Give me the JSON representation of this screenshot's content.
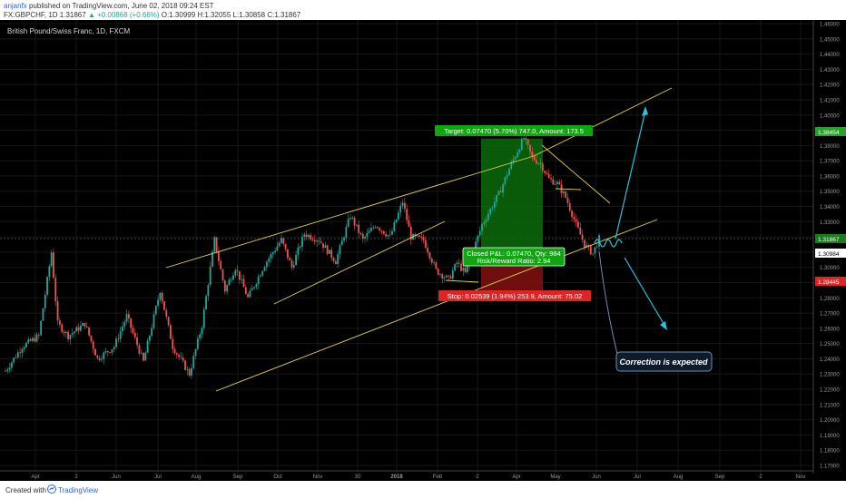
{
  "header": {
    "author": "anjanfx",
    "published": " published on TradingView.com, June 02, 2018 09:24 EST",
    "symbol_line_prefix": "FX:GBPCHF, 1D 1.31867 ",
    "change": "▲ +0.00868 (+0.66%)",
    "ohlc": " O:1.30999 H:1.32055 L:1.30858 C:1.31867"
  },
  "chart": {
    "instrument_label": "British Pound/Swiss Franc, 1D, FXCM",
    "x_ticks": [
      "Apr",
      "2",
      "Jun",
      "Jul",
      "Aug",
      "Sep",
      "Oct",
      "Nov",
      "30",
      "2018",
      "Feb",
      "2",
      "Apr",
      "May",
      "Jun",
      "Jul",
      "Aug",
      "Sep",
      "2",
      "Nov"
    ],
    "y_ticks": [
      "1.46000",
      "1.45000",
      "1.44000",
      "1.43000",
      "1.42000",
      "1.41000",
      "1.40000",
      "1.39000",
      "1.38000",
      "1.37000",
      "1.36000",
      "1.35000",
      "1.34000",
      "1.33000",
      "1.32000",
      "1.31000",
      "1.30000",
      "1.29000",
      "1.28000",
      "1.27000",
      "1.26000",
      "1.25000",
      "1.24000",
      "1.23000",
      "1.22000",
      "1.21000",
      "1.20000",
      "1.19000",
      "1.18000",
      "1.17000"
    ],
    "price_labels": {
      "target": "1.38454",
      "last": "1.31867",
      "entry": "1.30984",
      "stop": "1.28445"
    },
    "position": {
      "target_text": "Target: 0.07470 (5.70%) 747.0, Amount: 173.5",
      "closed_line1": "Closed P&L: 0.07470, Qty: 984",
      "closed_line2": "Risk/Reward Ratio: 2.94",
      "stop_text": "Stop: 0.02539 (1.94%) 253.9, Amount: 75.02"
    },
    "annotation": "Correction is expected",
    "colors": {
      "up": "#26a69a",
      "down": "#ef5350",
      "trendline": "#e3d14a",
      "arrow": "#26c6da",
      "target_fill": "#1e8c1e",
      "stop_fill": "#b71c1c"
    }
  },
  "footer": {
    "created_with": "Created with",
    "brand": "TradingView",
    "logo_icon": "tradingview-logo-icon"
  }
}
